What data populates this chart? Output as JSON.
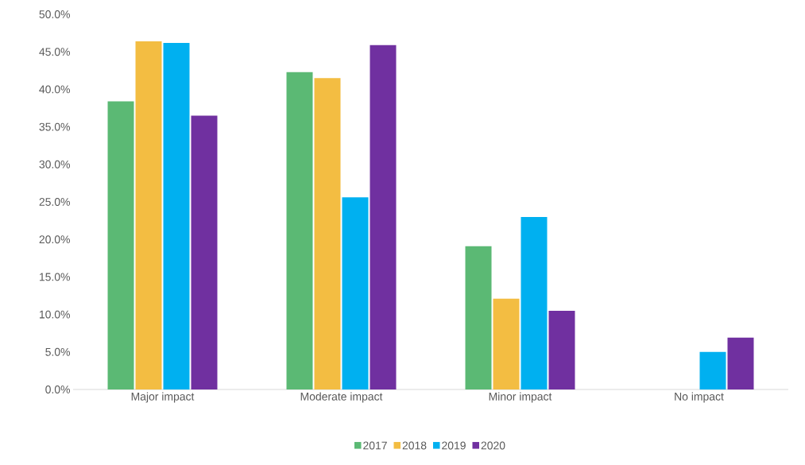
{
  "chart_data": {
    "type": "bar",
    "categories": [
      "Major impact",
      "Moderate impact",
      "Minor impact",
      "No impact"
    ],
    "series": [
      {
        "name": "2017",
        "color": "#5bb974",
        "values": [
          38.4,
          42.3,
          19.1,
          0
        ]
      },
      {
        "name": "2018",
        "color": "#f3bd42",
        "values": [
          46.4,
          41.5,
          12.1,
          0
        ]
      },
      {
        "name": "2019",
        "color": "#00b0f0",
        "values": [
          46.2,
          25.6,
          23.0,
          5.0
        ]
      },
      {
        "name": "2020",
        "color": "#7030a0",
        "values": [
          36.5,
          45.9,
          10.5,
          6.9
        ]
      }
    ],
    "ylim": [
      0,
      50
    ],
    "yticks": [
      {
        "value": 0,
        "label": "0.0%"
      },
      {
        "value": 5,
        "label": "5.0%"
      },
      {
        "value": 10,
        "label": "10.0%"
      },
      {
        "value": 15,
        "label": "15.0%"
      },
      {
        "value": 20,
        "label": "20.0%"
      },
      {
        "value": 25,
        "label": "25.0%"
      },
      {
        "value": 30,
        "label": "30.0%"
      },
      {
        "value": 35,
        "label": "35.0%"
      },
      {
        "value": 40,
        "label": "40.0%"
      },
      {
        "value": 45,
        "label": "45.0%"
      },
      {
        "value": 50,
        "label": "50.0%"
      }
    ],
    "grid": false,
    "legend": "bottom"
  }
}
